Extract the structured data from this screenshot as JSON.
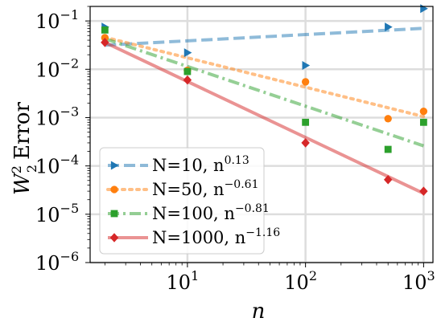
{
  "chart_data": {
    "type": "scatter",
    "xlabel": "n",
    "ylabel": "W²₂ Error",
    "xscale": "log",
    "yscale": "log",
    "xlim": [
      1.5,
      1200
    ],
    "ylim": [
      1e-06,
      0.2
    ],
    "grid": true,
    "legend_position": "lower-left",
    "x_ticks": [
      {
        "value": 10,
        "base": "10",
        "exp": "1"
      },
      {
        "value": 100,
        "base": "10",
        "exp": "2"
      },
      {
        "value": 1000,
        "base": "10",
        "exp": "3"
      }
    ],
    "y_ticks": [
      {
        "value": 0.1,
        "base": "10",
        "exp": "−1"
      },
      {
        "value": 0.01,
        "base": "10",
        "exp": "−2"
      },
      {
        "value": 0.001,
        "base": "10",
        "exp": "−3"
      },
      {
        "value": 0.0001,
        "base": "10",
        "exp": "−4"
      },
      {
        "value": 1e-05,
        "base": "10",
        "exp": "−5"
      },
      {
        "value": 1e-06,
        "base": "10",
        "exp": "−6"
      }
    ],
    "series": [
      {
        "name": "N=10, n",
        "exponent_label": "0.13",
        "color": "#1f77b4",
        "marker": "triangle-right",
        "line_style": "dashed",
        "x": [
          2,
          10,
          100,
          500,
          1000
        ],
        "y": [
          0.075,
          0.022,
          0.012,
          0.075,
          0.18
        ],
        "fit_x": [
          2,
          1000
        ],
        "fit_y": [
          0.0315,
          0.0705
        ]
      },
      {
        "name": "N=50, n",
        "exponent_label": "−0.61",
        "color": "#ff7f0e",
        "marker": "circle",
        "line_style": "dotted",
        "x": [
          2,
          10,
          100,
          500,
          1000
        ],
        "y": [
          0.045,
          0.0095,
          0.0055,
          0.00095,
          0.00135
        ],
        "fit_x": [
          2,
          1000
        ],
        "fit_y": [
          0.046,
          0.00105
        ]
      },
      {
        "name": "N=100, n",
        "exponent_label": "−0.81",
        "color": "#2ca02c",
        "marker": "square",
        "line_style": "dash-dot",
        "x": [
          2,
          10,
          100,
          500,
          1000
        ],
        "y": [
          0.065,
          0.009,
          0.0008,
          0.00022,
          0.0008
        ],
        "fit_x": [
          2,
          1000
        ],
        "fit_y": [
          0.043,
          0.00026
        ]
      },
      {
        "name": "N=1000, n",
        "exponent_label": "−1.16",
        "color": "#d62728",
        "marker": "diamond",
        "line_style": "solid",
        "x": [
          2,
          10,
          100,
          500,
          1000
        ],
        "y": [
          0.036,
          0.006,
          0.0003,
          5.2e-05,
          3e-05
        ],
        "fit_x": [
          2,
          1000
        ],
        "fit_y": [
          0.036,
          2.7e-05
        ]
      }
    ]
  }
}
